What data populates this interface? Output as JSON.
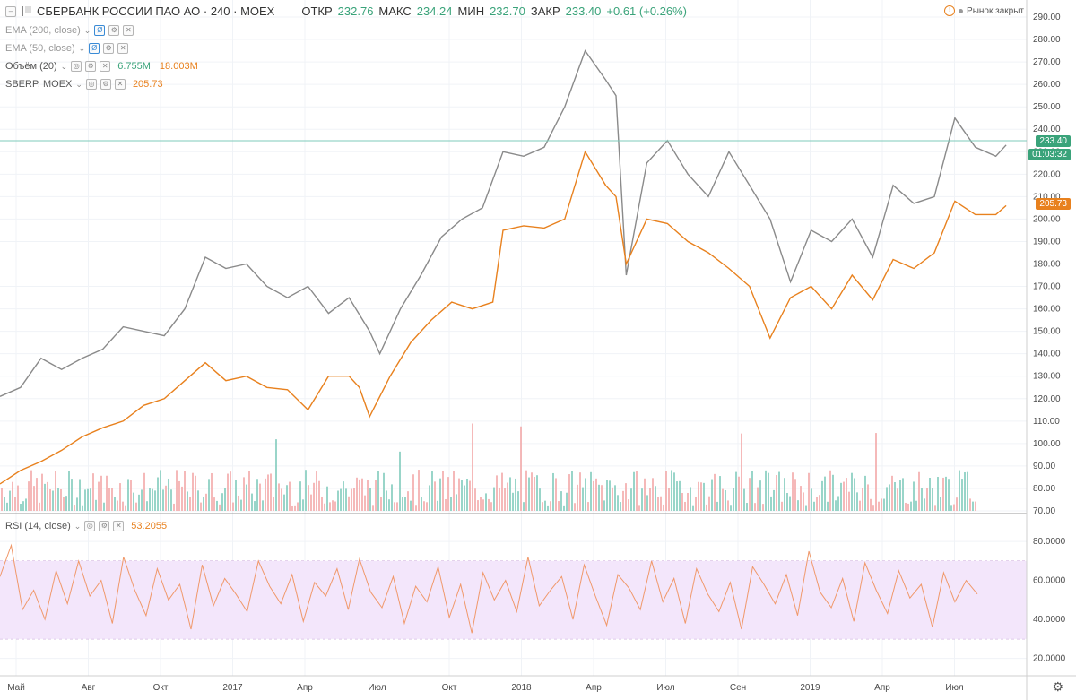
{
  "header": {
    "symbol": "СБЕРБАНК РОССИИ ПАО АО · 240 · MOEX",
    "open_label": "ОТКР",
    "open_value": "232.76",
    "high_label": "МАКС",
    "high_value": "234.24",
    "low_label": "МИН",
    "low_value": "232.70",
    "close_label": "ЗАКР",
    "close_value": "233.40",
    "change": "+0.61 (+0.26%)"
  },
  "market_status": "Рынок закрыт",
  "legend": {
    "ema200": "EMA (200, close)",
    "ema50": "EMA (50, close)",
    "volume": "Объём (20)",
    "volume_val1": "6.755M",
    "volume_val2": "18.003M",
    "compare": "SBERP, MOEX",
    "compare_val": "205.73",
    "rsi": "RSI (14, close)",
    "rsi_val": "53.2055"
  },
  "price_tags": {
    "last": "233.40",
    "timer": "01:03:32",
    "compare": "205.73"
  },
  "colors": {
    "price": "#8a8a8a",
    "compare": "#e8811e",
    "rsi": "#f0986a",
    "rsi_band": "#f3e6fb",
    "vol_up": "#7fcbbb",
    "vol_down": "#f2a7a7",
    "green": "#3aa37a"
  },
  "chart_data": [
    {
      "type": "line",
      "name": "main-price-panel",
      "x_labels": [
        "Май",
        "Авг",
        "Окт",
        "2017",
        "Апр",
        "Июл",
        "Окт",
        "2018",
        "Апр",
        "Июл",
        "Сен",
        "2019",
        "Апр",
        "Июл"
      ],
      "y_ticks": [
        70,
        80,
        90,
        100,
        110,
        120,
        130,
        140,
        150,
        160,
        170,
        180,
        190,
        200,
        210,
        220,
        230,
        240,
        250,
        260,
        270,
        280,
        290
      ],
      "ylim": [
        70,
        292
      ],
      "series": [
        {
          "name": "",
          "points": [
            [
              0,
              121
            ],
            [
              0.02,
              125
            ],
            [
              0.04,
              138
            ],
            [
              0.06,
              133
            ],
            [
              0.08,
              138
            ],
            [
              0.1,
              142
            ],
            [
              0.12,
              152
            ],
            [
              0.14,
              150
            ],
            [
              0.16,
              148
            ],
            [
              0.18,
              160
            ],
            [
              0.2,
              183
            ],
            [
              0.22,
              178
            ],
            [
              0.24,
              180
            ],
            [
              0.26,
              170
            ],
            [
              0.28,
              165
            ],
            [
              0.3,
              170
            ],
            [
              0.32,
              158
            ],
            [
              0.34,
              165
            ],
            [
              0.36,
              150
            ],
            [
              0.37,
              140
            ],
            [
              0.39,
              160
            ],
            [
              0.41,
              175
            ],
            [
              0.43,
              192
            ],
            [
              0.45,
              200
            ],
            [
              0.47,
              205
            ],
            [
              0.49,
              230
            ],
            [
              0.51,
              228
            ],
            [
              0.53,
              232
            ],
            [
              0.55,
              250
            ],
            [
              0.57,
              275
            ],
            [
              0.59,
              262
            ],
            [
              0.6,
              255
            ],
            [
              0.61,
              175
            ],
            [
              0.63,
              225
            ],
            [
              0.65,
              235
            ],
            [
              0.67,
              220
            ],
            [
              0.69,
              210
            ],
            [
              0.71,
              230
            ],
            [
              0.73,
              215
            ],
            [
              0.75,
              200
            ],
            [
              0.77,
              172
            ],
            [
              0.79,
              195
            ],
            [
              0.81,
              190
            ],
            [
              0.83,
              200
            ],
            [
              0.85,
              183
            ],
            [
              0.87,
              215
            ],
            [
              0.89,
              207
            ],
            [
              0.91,
              210
            ],
            [
              0.93,
              245
            ],
            [
              0.95,
              232
            ],
            [
              0.97,
              228
            ],
            [
              0.98,
              233
            ]
          ]
        },
        {
          "name": "SBERP, MOEX",
          "points": [
            [
              0,
              82
            ],
            [
              0.02,
              88
            ],
            [
              0.04,
              92
            ],
            [
              0.06,
              97
            ],
            [
              0.08,
              103
            ],
            [
              0.1,
              107
            ],
            [
              0.12,
              110
            ],
            [
              0.14,
              117
            ],
            [
              0.16,
              120
            ],
            [
              0.18,
              128
            ],
            [
              0.2,
              136
            ],
            [
              0.22,
              128
            ],
            [
              0.24,
              130
            ],
            [
              0.26,
              125
            ],
            [
              0.28,
              124
            ],
            [
              0.3,
              115
            ],
            [
              0.32,
              130
            ],
            [
              0.34,
              130
            ],
            [
              0.35,
              125
            ],
            [
              0.36,
              112
            ],
            [
              0.38,
              130
            ],
            [
              0.4,
              145
            ],
            [
              0.42,
              155
            ],
            [
              0.44,
              163
            ],
            [
              0.46,
              160
            ],
            [
              0.48,
              163
            ],
            [
              0.49,
              195
            ],
            [
              0.51,
              197
            ],
            [
              0.53,
              196
            ],
            [
              0.55,
              200
            ],
            [
              0.57,
              230
            ],
            [
              0.59,
              215
            ],
            [
              0.6,
              210
            ],
            [
              0.61,
              180
            ],
            [
              0.63,
              200
            ],
            [
              0.65,
              198
            ],
            [
              0.67,
              190
            ],
            [
              0.69,
              185
            ],
            [
              0.71,
              178
            ],
            [
              0.73,
              170
            ],
            [
              0.75,
              147
            ],
            [
              0.77,
              165
            ],
            [
              0.79,
              170
            ],
            [
              0.81,
              160
            ],
            [
              0.83,
              175
            ],
            [
              0.85,
              164
            ],
            [
              0.87,
              182
            ],
            [
              0.89,
              178
            ],
            [
              0.91,
              185
            ],
            [
              0.93,
              208
            ],
            [
              0.95,
              202
            ],
            [
              0.97,
              202
            ],
            [
              0.98,
              206
            ]
          ]
        }
      ]
    },
    {
      "type": "line",
      "name": "rsi-panel",
      "y_ticks": [
        20,
        40,
        60,
        80
      ],
      "ylim": [
        12,
        92
      ],
      "band": [
        30,
        70
      ],
      "series": [
        {
          "name": "RSI (14, close)",
          "values": [
            62,
            78,
            45,
            55,
            40,
            65,
            48,
            70,
            52,
            60,
            38,
            72,
            55,
            42,
            66,
            50,
            58,
            35,
            68,
            47,
            61,
            53,
            44,
            70,
            57,
            48,
            63,
            39,
            59,
            52,
            66,
            45,
            71,
            54,
            46,
            62,
            38,
            57,
            49,
            67,
            41,
            58,
            33,
            64,
            50,
            60,
            44,
            72,
            47,
            55,
            62,
            40,
            68,
            52,
            37,
            63,
            56,
            45,
            70,
            49,
            61,
            38,
            66,
            53,
            44,
            59,
            35,
            67,
            58,
            48,
            63,
            42,
            75,
            54,
            46,
            61,
            39,
            69,
            55,
            43,
            65,
            51,
            58,
            36,
            64,
            49,
            60,
            53
          ]
        }
      ]
    }
  ]
}
